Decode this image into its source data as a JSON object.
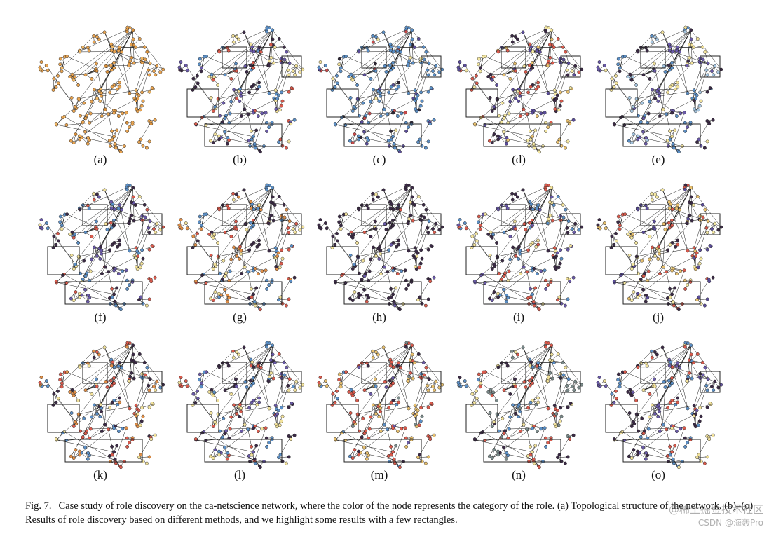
{
  "figure": {
    "panels": [
      {
        "label": "(a)",
        "palette": [
          "#e8a452",
          "#d9913d",
          "#f0b866"
        ],
        "rects": false
      },
      {
        "label": "(b)",
        "palette": [
          "#5b8fc6",
          "#d95b4d",
          "#f2e29b",
          "#6a5aa8",
          "#3b2a45"
        ],
        "rects": true
      },
      {
        "label": "(c)",
        "palette": [
          "#5b8fc6",
          "#c94a4a",
          "#f2e29b",
          "#5b4d9a",
          "#2d2635"
        ],
        "rects": true
      },
      {
        "label": "(d)",
        "palette": [
          "#f4e7a1",
          "#d95b4d",
          "#5b4d9a",
          "#3b2a45",
          "#e8c06e"
        ],
        "rects": true
      },
      {
        "label": "(e)",
        "palette": [
          "#5b8fc6",
          "#a6c6e0",
          "#f2e29b",
          "#3b2a45",
          "#6a5aa8"
        ],
        "rects": true
      },
      {
        "label": "(f)",
        "palette": [
          "#5b8fc6",
          "#6a5aa8",
          "#d95b4d",
          "#3b2a45",
          "#f2e29b"
        ],
        "rects": true
      },
      {
        "label": "(g)",
        "palette": [
          "#5b8fc6",
          "#d95b4d",
          "#f2e29b",
          "#e08f48",
          "#3b2a45"
        ],
        "rects": true
      },
      {
        "label": "(h)",
        "palette": [
          "#3b2a45",
          "#5b8fc6",
          "#f2e29b",
          "#d95b4d",
          "#6a5aa8"
        ],
        "rects": true
      },
      {
        "label": "(i)",
        "palette": [
          "#d95b4d",
          "#f2e29b",
          "#5b8fc6",
          "#3b2a45",
          "#6a5aa8"
        ],
        "rects": true
      },
      {
        "label": "(j)",
        "palette": [
          "#d95b4d",
          "#f4e7a1",
          "#3b2a45",
          "#5b4d9a",
          "#e8c06e"
        ],
        "rects": true
      },
      {
        "label": "(k)",
        "palette": [
          "#d95b4d",
          "#5b8fc6",
          "#f2e29b",
          "#3b2a45",
          "#e08f48"
        ],
        "rects": true
      },
      {
        "label": "(l)",
        "palette": [
          "#5b8fc6",
          "#3b2a45",
          "#f2e29b",
          "#d95b4d",
          "#6a5aa8"
        ],
        "rects": true
      },
      {
        "label": "(m)",
        "palette": [
          "#d95b4d",
          "#5b8fc6",
          "#6a5aa8",
          "#e8c06e",
          "#3b2a45",
          "#7a8a8a"
        ],
        "rects": true
      },
      {
        "label": "(n)",
        "palette": [
          "#d95b4d",
          "#f2e29b",
          "#5b8fc6",
          "#7a8a8a",
          "#3b2a45"
        ],
        "rects": true
      },
      {
        "label": "(o)",
        "palette": [
          "#5b8fc6",
          "#3b2a45",
          "#d95b4d",
          "#f2e29b",
          "#6a5aa8"
        ],
        "rects": true
      }
    ],
    "edge_color": "#1a1a1a",
    "rect_color": "#222222"
  },
  "caption": {
    "fig_label": "Fig. 7.",
    "text": "Case study of role discovery on the ca-netscience network, where the color of the node represents the category of the role. (a) Topological structure of the network. (b)–(o) Results of role discovery based on different methods, and we highlight some results with a few rectangles."
  },
  "watermark": {
    "line1": "@稀土掘金技术社区",
    "line2": "CSDN @海轰Pro"
  }
}
